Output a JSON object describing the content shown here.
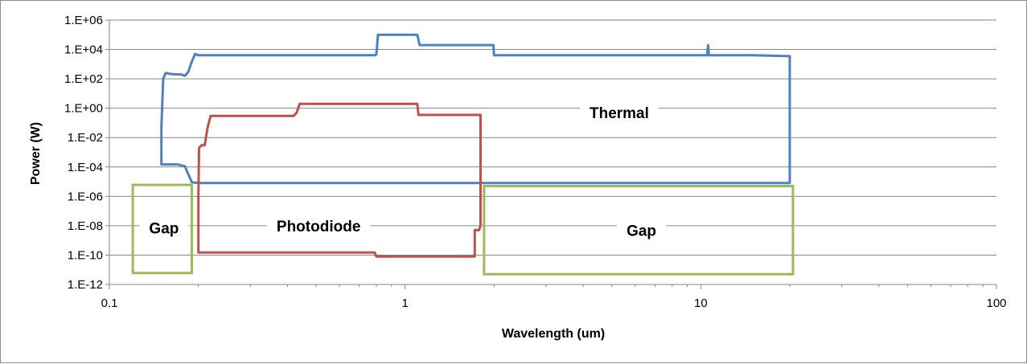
{
  "chart_data": {
    "type": "line",
    "title": "",
    "xlabel": "Wavelength (um)",
    "ylabel": "Power (W)",
    "x_scale": "log",
    "y_scale": "log",
    "xlim": [
      0.1,
      100
    ],
    "ylim": [
      1e-12,
      1000000.0
    ],
    "grid": "horizontal",
    "legend": "none",
    "x_ticks": [
      {
        "value": 0.1,
        "label": "0.1"
      },
      {
        "value": 1,
        "label": "1"
      },
      {
        "value": 10,
        "label": "10"
      },
      {
        "value": 100,
        "label": "100"
      }
    ],
    "y_ticks": [
      {
        "value": 1e-12,
        "label": "1.E-12"
      },
      {
        "value": 1e-10,
        "label": "1.E-10"
      },
      {
        "value": 1e-08,
        "label": "1.E-08"
      },
      {
        "value": 1e-06,
        "label": "1.E-06"
      },
      {
        "value": 0.0001,
        "label": "1.E-04"
      },
      {
        "value": 0.01,
        "label": "1.E-02"
      },
      {
        "value": 1,
        "label": "1.E+00"
      },
      {
        "value": 100,
        "label": "1.E+02"
      },
      {
        "value": 10000.0,
        "label": "1.E+04"
      },
      {
        "value": 1000000.0,
        "label": "1.E+06"
      }
    ],
    "series": [
      {
        "color": "#4f81bd",
        "points": [
          [
            0.15,
            0.00015
          ],
          [
            0.15,
            0.05
          ],
          [
            0.152,
            100
          ],
          [
            0.155,
            250
          ],
          [
            0.16,
            220
          ],
          [
            0.168,
            200
          ],
          [
            0.175,
            200
          ],
          [
            0.18,
            160
          ],
          [
            0.185,
            300
          ],
          [
            0.19,
            1500
          ],
          [
            0.195,
            5000
          ],
          [
            0.2,
            4000
          ],
          [
            0.3,
            4000
          ],
          [
            0.5,
            4000
          ],
          [
            0.79,
            4000
          ],
          [
            0.8,
            4500
          ],
          [
            0.81,
            100000
          ],
          [
            1.1,
            100000
          ],
          [
            1.12,
            20000
          ],
          [
            1.5,
            20000
          ],
          [
            1.99,
            20000
          ],
          [
            2.0,
            4000
          ],
          [
            5,
            4000
          ],
          [
            10.5,
            4000
          ],
          [
            10.6,
            20000
          ],
          [
            10.65,
            4000
          ],
          [
            15,
            4000
          ],
          [
            20,
            3500
          ],
          [
            20,
            8e-06
          ],
          [
            10,
            8e-06
          ],
          [
            2,
            8e-06
          ],
          [
            1,
            8e-06
          ],
          [
            0.5,
            8e-06
          ],
          [
            0.2,
            8e-06
          ],
          [
            0.19,
            9e-06
          ],
          [
            0.18,
            0.00011
          ],
          [
            0.17,
            0.00015
          ],
          [
            0.15,
            0.00015
          ]
        ]
      },
      {
        "color": "#c0504d",
        "points": [
          [
            0.2,
            1.5e-10
          ],
          [
            0.2,
            1e-06
          ],
          [
            0.201,
            0.002
          ],
          [
            0.205,
            0.003
          ],
          [
            0.21,
            0.003
          ],
          [
            0.215,
            0.05
          ],
          [
            0.22,
            0.3
          ],
          [
            0.23,
            0.3
          ],
          [
            0.42,
            0.3
          ],
          [
            0.43,
            0.5
          ],
          [
            0.44,
            2
          ],
          [
            0.6,
            2
          ],
          [
            1.1,
            2
          ],
          [
            1.11,
            0.35
          ],
          [
            1.5,
            0.35
          ],
          [
            1.8,
            0.35
          ],
          [
            1.8,
            1e-08
          ],
          [
            1.78,
            5e-09
          ],
          [
            1.72,
            5e-09
          ],
          [
            1.72,
            8e-11
          ],
          [
            1.2,
            8e-11
          ],
          [
            0.8,
            8e-11
          ],
          [
            0.79,
            1.5e-10
          ],
          [
            0.5,
            1.5e-10
          ],
          [
            0.2,
            1.5e-10
          ]
        ]
      }
    ],
    "gaps": [
      {
        "color": "#9bbb59",
        "x": [
          0.12,
          0.19
        ],
        "y": [
          6e-12,
          6e-06
        ]
      },
      {
        "color": "#9bbb59",
        "x": [
          1.85,
          20.5
        ],
        "y": [
          5e-12,
          5e-06
        ]
      }
    ],
    "annotations": [
      {
        "text": "Thermal",
        "x": 5.3,
        "y": 0.5
      },
      {
        "text": "Gap",
        "x": 0.153,
        "y": 7e-09
      },
      {
        "text": "Photodiode",
        "x": 0.51,
        "y": 1e-08
      },
      {
        "text": "Gap",
        "x": 6.3,
        "y": 5e-09
      }
    ]
  }
}
